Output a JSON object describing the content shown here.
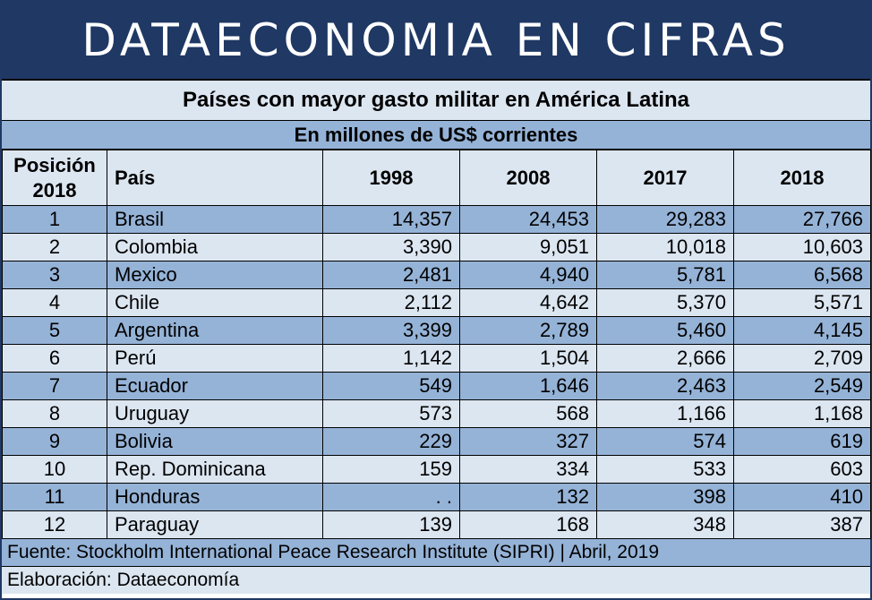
{
  "banner": {
    "title": "DATAECONOMIA EN CIFRAS"
  },
  "table_title": "Países con mayor gasto militar en América Latina",
  "table_subtitle": "En millones de US$ corrientes",
  "columns": {
    "position": "Posición 2018",
    "country": "País",
    "y1998": "1998",
    "y2008": "2008",
    "y2017": "2017",
    "y2018": "2018"
  },
  "rows": [
    {
      "pos": "1",
      "country": "Brasil",
      "v1998": "14,357",
      "v2008": "24,453",
      "v2017": "29,283",
      "v2018": "27,766"
    },
    {
      "pos": "2",
      "country": "Colombia",
      "v1998": "3,390",
      "v2008": "9,051",
      "v2017": "10,018",
      "v2018": "10,603"
    },
    {
      "pos": "3",
      "country": "Mexico",
      "v1998": "2,481",
      "v2008": "4,940",
      "v2017": "5,781",
      "v2018": "6,568"
    },
    {
      "pos": "4",
      "country": "Chile",
      "v1998": "2,112",
      "v2008": "4,642",
      "v2017": "5,370",
      "v2018": "5,571"
    },
    {
      "pos": "5",
      "country": "Argentina",
      "v1998": "3,399",
      "v2008": "2,789",
      "v2017": "5,460",
      "v2018": "4,145"
    },
    {
      "pos": "6",
      "country": "Perú",
      "v1998": "1,142",
      "v2008": "1,504",
      "v2017": "2,666",
      "v2018": "2,709"
    },
    {
      "pos": "7",
      "country": "Ecuador",
      "v1998": "549",
      "v2008": "1,646",
      "v2017": "2,463",
      "v2018": "2,549"
    },
    {
      "pos": "8",
      "country": "Uruguay",
      "v1998": "573",
      "v2008": "568",
      "v2017": "1,166",
      "v2018": "1,168"
    },
    {
      "pos": "9",
      "country": "Bolivia",
      "v1998": "229",
      "v2008": "327",
      "v2017": "574",
      "v2018": "619"
    },
    {
      "pos": "10",
      "country": "Rep. Dominicana",
      "v1998": "159",
      "v2008": "334",
      "v2017": "533",
      "v2018": "603"
    },
    {
      "pos": "11",
      "country": "Honduras",
      "v1998": ". .",
      "v2008": "132",
      "v2017": "398",
      "v2018": "410"
    },
    {
      "pos": "12",
      "country": "Paraguay",
      "v1998": "139",
      "v2008": "168",
      "v2017": "348",
      "v2018": "387"
    }
  ],
  "footer": {
    "source": "Fuente: Stockholm International Peace Research Institute (SIPRI) | Abril, 2019",
    "credit": "Elaboración: Dataeconomía"
  },
  "colors": {
    "banner_bg": "#1f3864",
    "row_dark": "#95b3d7",
    "row_light": "#dce6f1"
  }
}
